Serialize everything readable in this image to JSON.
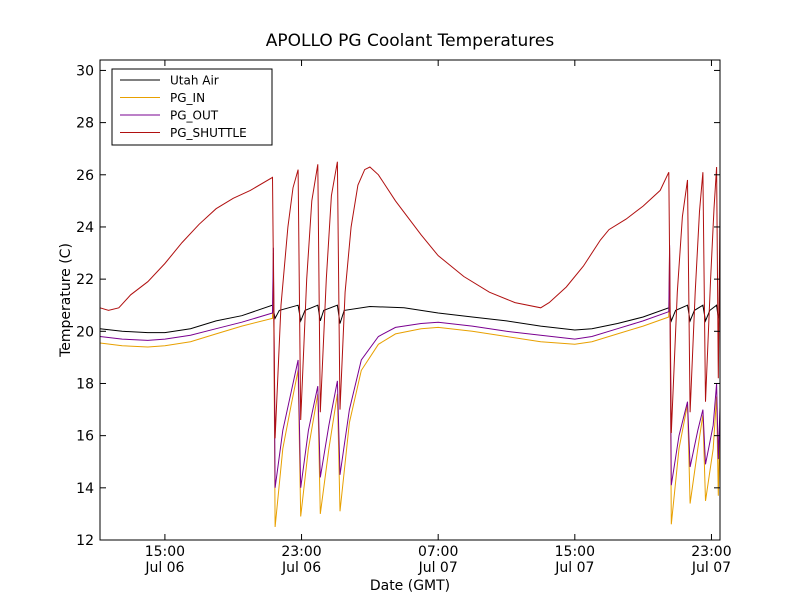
{
  "chart_data": {
    "type": "line",
    "title": "APOLLO PG Coolant Temperatures",
    "xlabel": "Date (GMT)",
    "ylabel": "Temperature (C)",
    "x_unit": "hours since Jul 06 00:00 GMT",
    "xlim": [
      11.2,
      47.5
    ],
    "ylim": [
      12,
      30.4
    ],
    "y_ticks": [
      12,
      14,
      16,
      18,
      20,
      22,
      24,
      26,
      28,
      30
    ],
    "x_ticks": [
      {
        "hour": 15,
        "time": "15:00",
        "date": "Jul 06"
      },
      {
        "hour": 23,
        "time": "23:00",
        "date": "Jul 06"
      },
      {
        "hour": 31,
        "time": "07:00",
        "date": "Jul 07"
      },
      {
        "hour": 39,
        "time": "15:00",
        "date": "Jul 07"
      },
      {
        "hour": 47,
        "time": "23:00",
        "date": "Jul 07"
      }
    ],
    "legend_position": "upper-left",
    "series": [
      {
        "name": "Utah Air",
        "color": "#000000",
        "points": [
          [
            11.2,
            20.1
          ],
          [
            12.5,
            20.0
          ],
          [
            14.0,
            19.95
          ],
          [
            15.0,
            19.95
          ],
          [
            16.5,
            20.1
          ],
          [
            18.0,
            20.4
          ],
          [
            19.5,
            20.6
          ],
          [
            21.3,
            21.0
          ],
          [
            21.45,
            20.5
          ],
          [
            21.7,
            20.8
          ],
          [
            22.8,
            21.0
          ],
          [
            22.95,
            20.4
          ],
          [
            23.2,
            20.8
          ],
          [
            23.95,
            21.0
          ],
          [
            24.1,
            20.4
          ],
          [
            24.3,
            20.8
          ],
          [
            25.1,
            21.0
          ],
          [
            25.25,
            20.3
          ],
          [
            25.5,
            20.8
          ],
          [
            27.0,
            20.95
          ],
          [
            29.0,
            20.9
          ],
          [
            31.0,
            20.7
          ],
          [
            33.0,
            20.55
          ],
          [
            35.0,
            20.4
          ],
          [
            37.0,
            20.2
          ],
          [
            39.0,
            20.05
          ],
          [
            40.0,
            20.1
          ],
          [
            41.5,
            20.3
          ],
          [
            43.0,
            20.55
          ],
          [
            44.5,
            20.9
          ],
          [
            44.65,
            20.4
          ],
          [
            44.9,
            20.8
          ],
          [
            45.6,
            21.0
          ],
          [
            45.75,
            20.4
          ],
          [
            46.0,
            20.8
          ],
          [
            46.5,
            21.0
          ],
          [
            46.65,
            20.4
          ],
          [
            46.9,
            20.8
          ],
          [
            47.3,
            21.0
          ],
          [
            47.4,
            20.5
          ],
          [
            47.5,
            20.9
          ]
        ]
      },
      {
        "name": "PG_IN",
        "color": "#e8a000",
        "points": [
          [
            11.2,
            19.55
          ],
          [
            12.5,
            19.45
          ],
          [
            14.0,
            19.4
          ],
          [
            15.0,
            19.45
          ],
          [
            16.5,
            19.6
          ],
          [
            18.0,
            19.9
          ],
          [
            19.5,
            20.2
          ],
          [
            21.3,
            20.5
          ],
          [
            21.35,
            23.0
          ],
          [
            21.45,
            12.5
          ],
          [
            21.9,
            15.5
          ],
          [
            22.4,
            17.2
          ],
          [
            22.8,
            18.5
          ],
          [
            22.95,
            12.9
          ],
          [
            23.4,
            15.5
          ],
          [
            23.95,
            17.6
          ],
          [
            24.1,
            13.0
          ],
          [
            24.6,
            15.5
          ],
          [
            25.1,
            17.6
          ],
          [
            25.25,
            13.1
          ],
          [
            25.8,
            16.5
          ],
          [
            26.5,
            18.5
          ],
          [
            27.5,
            19.5
          ],
          [
            28.5,
            19.9
          ],
          [
            30.0,
            20.1
          ],
          [
            31.0,
            20.15
          ],
          [
            33.0,
            20.0
          ],
          [
            35.0,
            19.8
          ],
          [
            37.0,
            19.6
          ],
          [
            39.0,
            19.5
          ],
          [
            40.0,
            19.6
          ],
          [
            41.5,
            19.9
          ],
          [
            43.0,
            20.2
          ],
          [
            44.5,
            20.55
          ],
          [
            44.55,
            23.2
          ],
          [
            44.65,
            12.6
          ],
          [
            45.1,
            15.5
          ],
          [
            45.6,
            17.2
          ],
          [
            45.75,
            13.4
          ],
          [
            46.2,
            15.5
          ],
          [
            46.5,
            16.8
          ],
          [
            46.65,
            13.5
          ],
          [
            47.1,
            15.5
          ],
          [
            47.3,
            17.5
          ],
          [
            47.4,
            13.7
          ],
          [
            47.5,
            16.7
          ]
        ]
      },
      {
        "name": "PG_OUT",
        "color": "#7a0090",
        "points": [
          [
            11.2,
            19.8
          ],
          [
            12.5,
            19.7
          ],
          [
            14.0,
            19.65
          ],
          [
            15.0,
            19.7
          ],
          [
            16.5,
            19.85
          ],
          [
            18.0,
            20.1
          ],
          [
            19.5,
            20.35
          ],
          [
            21.3,
            20.7
          ],
          [
            21.35,
            23.2
          ],
          [
            21.45,
            14.0
          ],
          [
            21.9,
            16.2
          ],
          [
            22.4,
            17.7
          ],
          [
            22.8,
            18.9
          ],
          [
            22.95,
            14.0
          ],
          [
            23.4,
            16.2
          ],
          [
            23.95,
            17.9
          ],
          [
            24.1,
            14.4
          ],
          [
            24.6,
            16.4
          ],
          [
            25.1,
            18.1
          ],
          [
            25.25,
            14.5
          ],
          [
            25.8,
            17.0
          ],
          [
            26.5,
            18.9
          ],
          [
            27.5,
            19.8
          ],
          [
            28.5,
            20.15
          ],
          [
            30.0,
            20.3
          ],
          [
            31.0,
            20.35
          ],
          [
            33.0,
            20.2
          ],
          [
            35.0,
            20.0
          ],
          [
            37.0,
            19.85
          ],
          [
            39.0,
            19.7
          ],
          [
            40.0,
            19.8
          ],
          [
            41.5,
            20.1
          ],
          [
            43.0,
            20.4
          ],
          [
            44.5,
            20.75
          ],
          [
            44.55,
            23.3
          ],
          [
            44.65,
            14.1
          ],
          [
            45.1,
            16.0
          ],
          [
            45.6,
            17.3
          ],
          [
            45.75,
            14.8
          ],
          [
            46.2,
            16.2
          ],
          [
            46.5,
            17.0
          ],
          [
            46.65,
            14.9
          ],
          [
            47.1,
            16.4
          ],
          [
            47.3,
            18.0
          ],
          [
            47.4,
            15.1
          ],
          [
            47.5,
            17.1
          ]
        ]
      },
      {
        "name": "PG_SHUTTLE",
        "color": "#b01010",
        "points": [
          [
            11.2,
            20.9
          ],
          [
            11.7,
            20.8
          ],
          [
            12.3,
            20.9
          ],
          [
            13.0,
            21.4
          ],
          [
            14.0,
            21.9
          ],
          [
            15.0,
            22.6
          ],
          [
            16.0,
            23.4
          ],
          [
            17.0,
            24.1
          ],
          [
            18.0,
            24.7
          ],
          [
            19.0,
            25.1
          ],
          [
            20.0,
            25.4
          ],
          [
            21.3,
            25.9
          ],
          [
            21.45,
            15.9
          ],
          [
            21.8,
            21.0
          ],
          [
            22.2,
            24.0
          ],
          [
            22.5,
            25.5
          ],
          [
            22.8,
            26.2
          ],
          [
            22.95,
            16.6
          ],
          [
            23.3,
            22.0
          ],
          [
            23.6,
            25.0
          ],
          [
            23.95,
            26.4
          ],
          [
            24.1,
            16.9
          ],
          [
            24.45,
            22.0
          ],
          [
            24.75,
            25.2
          ],
          [
            25.1,
            26.5
          ],
          [
            25.25,
            17.0
          ],
          [
            25.55,
            21.5
          ],
          [
            25.9,
            24.0
          ],
          [
            26.3,
            25.6
          ],
          [
            26.7,
            26.2
          ],
          [
            27.0,
            26.3
          ],
          [
            27.5,
            26.0
          ],
          [
            28.5,
            25.0
          ],
          [
            30.0,
            23.7
          ],
          [
            31.0,
            22.9
          ],
          [
            32.5,
            22.1
          ],
          [
            34.0,
            21.5
          ],
          [
            35.5,
            21.1
          ],
          [
            37.0,
            20.9
          ],
          [
            37.5,
            21.1
          ],
          [
            38.5,
            21.7
          ],
          [
            39.5,
            22.5
          ],
          [
            40.5,
            23.5
          ],
          [
            41.0,
            23.9
          ],
          [
            42.0,
            24.3
          ],
          [
            43.0,
            24.8
          ],
          [
            44.0,
            25.4
          ],
          [
            44.5,
            26.1
          ],
          [
            44.65,
            16.1
          ],
          [
            45.0,
            21.5
          ],
          [
            45.3,
            24.4
          ],
          [
            45.6,
            25.8
          ],
          [
            45.75,
            16.9
          ],
          [
            46.05,
            21.5
          ],
          [
            46.3,
            24.6
          ],
          [
            46.5,
            26.1
          ],
          [
            46.65,
            17.3
          ],
          [
            46.95,
            22.0
          ],
          [
            47.15,
            24.7
          ],
          [
            47.3,
            26.3
          ],
          [
            47.4,
            18.2
          ],
          [
            47.5,
            24.6
          ]
        ]
      }
    ]
  }
}
